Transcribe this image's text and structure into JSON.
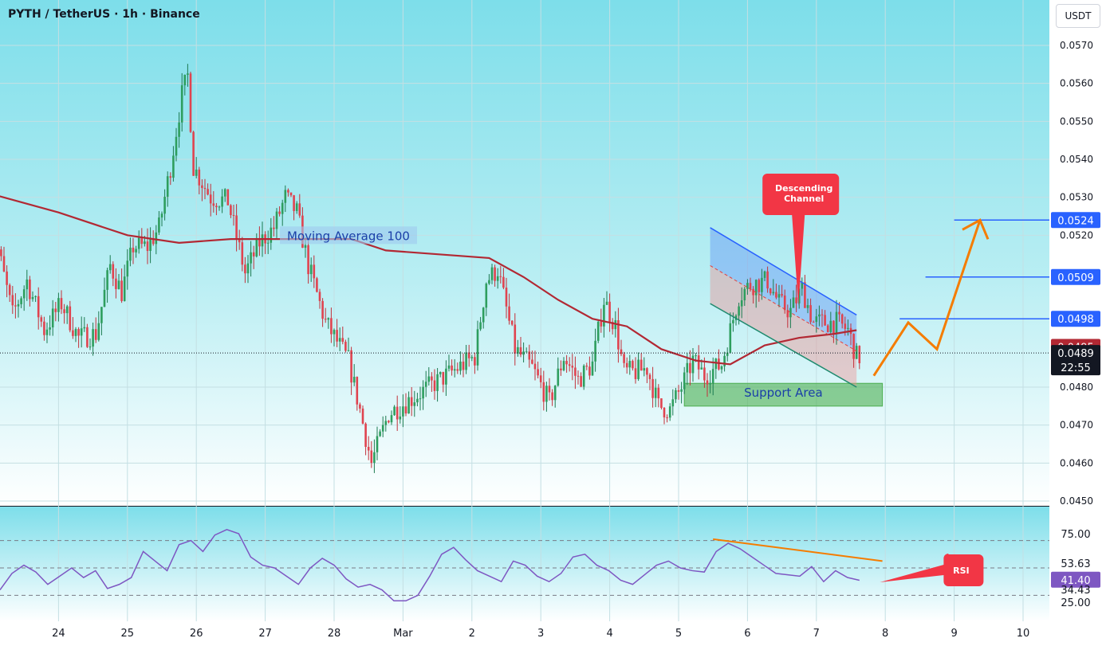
{
  "header": {
    "symbol_title": "PYTH / TetherUS · 1h · Binance",
    "currency_badge": "USDT"
  },
  "chart_data": [
    {
      "type": "candlestick",
      "title": "PYTH / TetherUS · 1h · Binance",
      "y_unit": "USDT",
      "ylim": [
        0.045,
        0.0575
      ],
      "y_ticks": [
        "0.0570",
        "0.0560",
        "0.0550",
        "0.0540",
        "0.0530",
        "0.0520",
        "0.0509",
        "0.0498",
        "0.0480",
        "0.0470",
        "0.0460",
        "0.0450"
      ],
      "x_ticks": [
        "24",
        "25",
        "26",
        "27",
        "28",
        "Mar",
        "2",
        "3",
        "4",
        "5",
        "6",
        "7",
        "8",
        "9",
        "10"
      ],
      "grid": true,
      "current_price": "0.0489",
      "countdown": "22:55",
      "price_path": [
        [
          "Feb 23 00:00",
          0.05
        ],
        [
          "Feb 23 04:00",
          0.0516
        ],
        [
          "Feb 23 09:00",
          0.0499
        ],
        [
          "Feb 23 14:00",
          0.0508
        ],
        [
          "Feb 23 20:00",
          0.0495
        ],
        [
          "Feb 24 02:00",
          0.0502
        ],
        [
          "Feb 24 08:00",
          0.0493
        ],
        [
          "Feb 24 14:00",
          0.0494
        ],
        [
          "Feb 24 19:00",
          0.0512
        ],
        [
          "Feb 24 23:00",
          0.0505
        ],
        [
          "Feb 25 03:00",
          0.0517
        ],
        [
          "Feb 25 08:00",
          0.0517
        ],
        [
          "Feb 25 12:00",
          0.0522
        ],
        [
          "Feb 25 16:00",
          0.0538
        ],
        [
          "Feb 25 20:00",
          0.0557
        ],
        [
          "Feb 25 22:00",
          0.0562
        ],
        [
          "Feb 26 00:00",
          0.0538
        ],
        [
          "Feb 26 06:00",
          0.053
        ],
        [
          "Feb 26 12:00",
          0.0529
        ],
        [
          "Feb 26 18:00",
          0.051
        ],
        [
          "Feb 26 23:00",
          0.0518
        ],
        [
          "Feb 27 04:00",
          0.0522
        ],
        [
          "Feb 27 08:00",
          0.053
        ],
        [
          "Feb 27 12:00",
          0.0526
        ],
        [
          "Feb 27 16:00",
          0.0512
        ],
        [
          "Feb 27 22:00",
          0.0497
        ],
        [
          "Feb 28 06:00",
          0.0487
        ],
        [
          "Feb 28 10:00",
          0.0474
        ],
        [
          "Feb 28 14:00",
          0.046
        ],
        [
          "Feb 28 20:00",
          0.0473
        ],
        [
          "Mar 01 02:00",
          0.0488
        ],
        [
          "Mar 01 06:00",
          0.0508
        ],
        [
          "Mar 01 10:00",
          0.0511
        ],
        [
          "Mar 01 16:00",
          0.049
        ],
        [
          "Mar 01 22:00",
          0.0485
        ],
        [
          "Mar 02 04:00",
          0.0476
        ],
        [
          "Mar 02 09:00",
          0.0488
        ],
        [
          "Mar 02 14:00",
          0.0482
        ],
        [
          "Mar 02 19:00",
          0.0486
        ],
        [
          "Mar 02 23:00",
          0.0503
        ],
        [
          "Mar 03 03:00",
          0.0496
        ],
        [
          "Mar 03 06:00",
          0.0484
        ],
        [
          "Mar 03 10:00",
          0.0484
        ],
        [
          "Mar 03 14:00",
          0.0485
        ],
        [
          "Mar 03 18:00",
          0.0475
        ],
        [
          "Mar 03 22:00",
          0.0474
        ],
        [
          "Mar 04 02:00",
          0.048
        ],
        [
          "Mar 04 06:00",
          0.0487
        ],
        [
          "Mar 04 10:00",
          0.0483
        ],
        [
          "Mar 04 16:00",
          0.0486
        ],
        [
          "Mar 04 22:00",
          0.0504
        ],
        [
          "Mar 05 02:00",
          0.0507
        ],
        [
          "Mar 05 08:00",
          0.0508
        ],
        [
          "Mar 05 12:00",
          0.0502
        ],
        [
          "Mar 05 16:00",
          0.05
        ],
        [
          "Mar 05 20:00",
          0.0506
        ],
        [
          "Mar 06 00:00",
          0.0497
        ],
        [
          "Mar 06 04:00",
          0.0497
        ],
        [
          "Mar 06 08:00",
          0.0497
        ],
        [
          "Mar 06 12:00",
          0.0495
        ],
        [
          "Mar 06 15:00",
          0.0488
        ]
      ],
      "lines": [
        {
          "name": "Moving Average 100",
          "color": "#b22833",
          "points": [
            [
              "Feb 23 00:00",
              0.0531
            ],
            [
              "Feb 24 00:00",
              0.0526
            ],
            [
              "Feb 25 00:00",
              0.052
            ],
            [
              "Feb 25 18:00",
              0.0518
            ],
            [
              "Feb 26 12:00",
              0.0519
            ],
            [
              "Feb 27 12:00",
              0.0519
            ],
            [
              "Feb 28 06:00",
              0.0519
            ],
            [
              "Feb 28 18:00",
              0.0516
            ],
            [
              "Mar 01 06:00",
              0.0514
            ],
            [
              "Mar 01 18:00",
              0.0509
            ],
            [
              "Mar 02 06:00",
              0.0503
            ],
            [
              "Mar 02 18:00",
              0.0498
            ],
            [
              "Mar 03 06:00",
              0.0496
            ],
            [
              "Mar 03 18:00",
              0.049
            ],
            [
              "Mar 04 06:00",
              0.0487
            ],
            [
              "Mar 04 18:00",
              0.0486
            ],
            [
              "Mar 05 06:00",
              0.0491
            ],
            [
              "Mar 05 18:00",
              0.0493
            ],
            [
              "Mar 06 06:00",
              0.0494
            ],
            [
              "Mar 06 14:00",
              0.0495
            ]
          ]
        }
      ],
      "horizontal_levels": [
        {
          "price": "0.0524",
          "color": "#2962ff"
        },
        {
          "price": "0.0509",
          "color": "#2962ff"
        },
        {
          "price": "0.0498",
          "color": "#2962ff"
        },
        {
          "price": "0.0495",
          "color": "#b22833"
        }
      ],
      "annotations": [
        {
          "kind": "label",
          "text": "Moving Average 100"
        },
        {
          "kind": "callout",
          "text": "Descending Channel",
          "text_lines": [
            "Descending",
            "Channel"
          ],
          "color": "#f23645"
        },
        {
          "kind": "zone",
          "text": "Support Area",
          "from": 0.0475,
          "to": 0.0481,
          "color": "#4caf50"
        },
        {
          "kind": "channel",
          "text": "",
          "upper": [
            [
              "Mar 04 11:00",
              0.0522
            ],
            [
              "Mar 06 14:00",
              0.0499
            ]
          ],
          "lower": [
            [
              "Mar 04 11:00",
              0.0502
            ],
            [
              "Mar 06 14:00",
              0.048
            ]
          ]
        },
        {
          "kind": "projection",
          "color": "#f57c00",
          "points": [
            [
              "Mar 06 20:00",
              0.0483
            ],
            [
              "Mar 07 08:00",
              0.0497
            ],
            [
              "Mar 07 18:00",
              0.049
            ],
            [
              "Mar 08 09:00",
              0.0524
            ]
          ]
        }
      ]
    },
    {
      "type": "line",
      "title": "RSI",
      "ylim": [
        25.0,
        80.0
      ],
      "y_ticks": [
        "75.00",
        "53.63",
        "41.40",
        "34.43",
        "25.00"
      ],
      "levels": [
        70,
        50,
        30
      ],
      "current_value": "41.40",
      "series": [
        {
          "name": "RSI",
          "color": "#7e57c2",
          "values": [
            34,
            46,
            52,
            47,
            38,
            44,
            50,
            43,
            48,
            35,
            38,
            43,
            62,
            55,
            48,
            67,
            70,
            62,
            74,
            78,
            75,
            58,
            52,
            50,
            44,
            38,
            50,
            57,
            52,
            42,
            36,
            38,
            34,
            26,
            26,
            30,
            44,
            60,
            65,
            56,
            48,
            44,
            40,
            55,
            52,
            44,
            40,
            46,
            58,
            60,
            52,
            48,
            41,
            38,
            45,
            52,
            55,
            50,
            48,
            47,
            62,
            68,
            64,
            58,
            52,
            46,
            45,
            44,
            51,
            40,
            48,
            43,
            41
          ]
        }
      ],
      "annotations": [
        {
          "kind": "callout",
          "text": "RSI",
          "color": "#f23645"
        }
      ]
    }
  ]
}
